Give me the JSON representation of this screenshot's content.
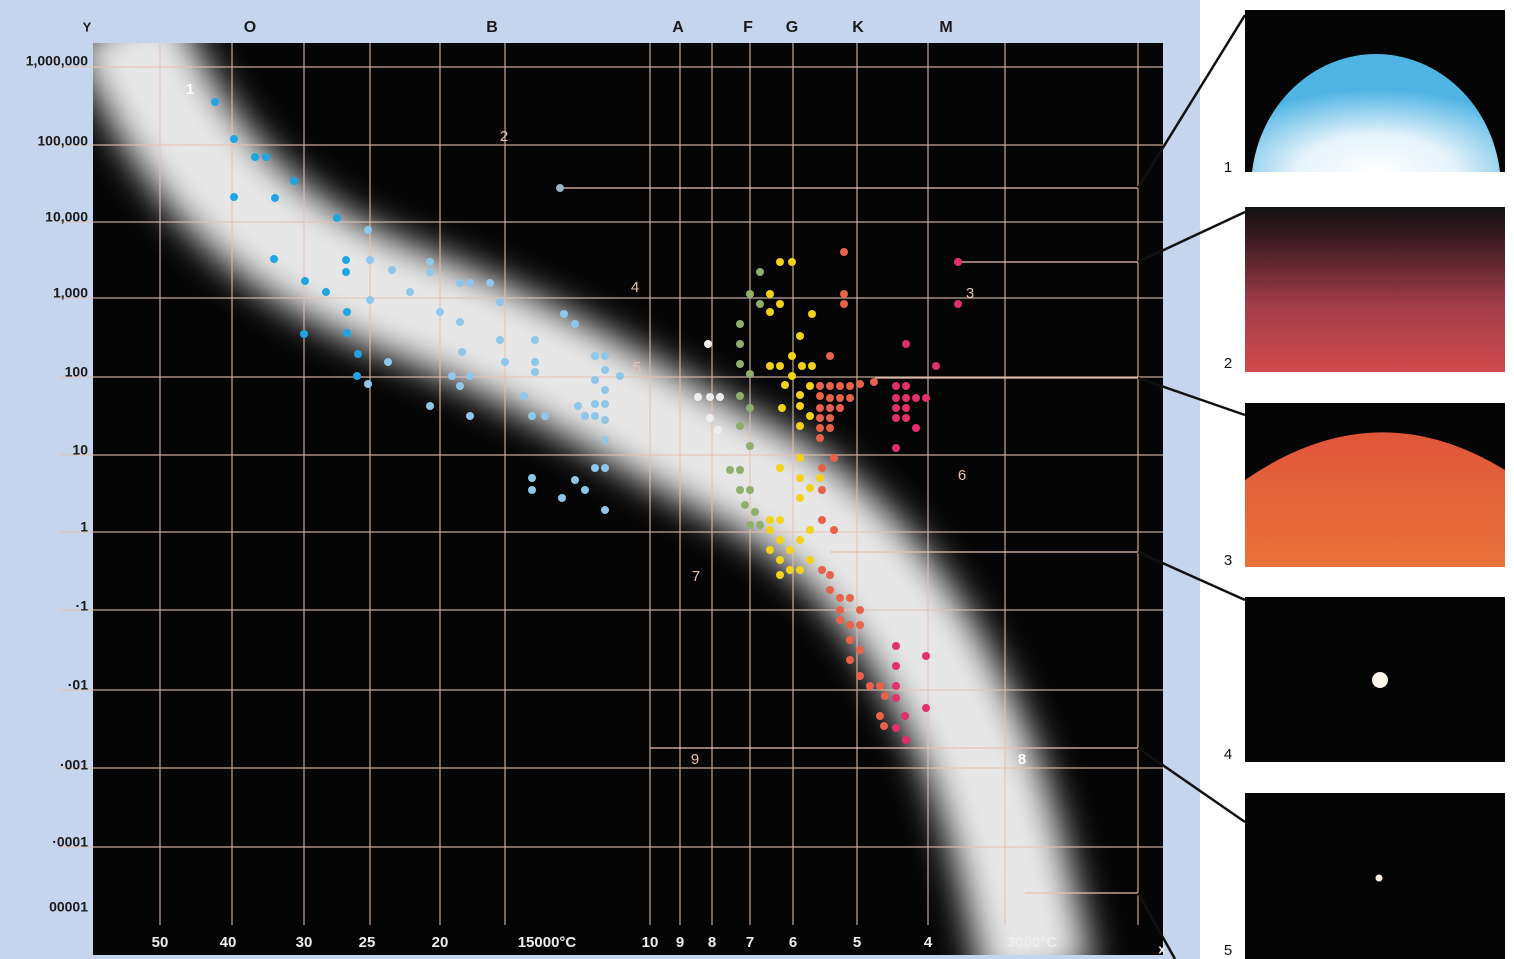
{
  "y_axis": {
    "label": "Y",
    "ticks": [
      "1,000,000",
      "100,000",
      "10,000",
      "1,000",
      "100",
      "10",
      "1",
      "·1",
      "·01",
      "·001",
      "·0001",
      "00001"
    ]
  },
  "x_axis": {
    "label": "x",
    "ticks": [
      "50",
      "40",
      "30",
      "25",
      "20",
      "15000°C",
      "10",
      "9",
      "8",
      "7",
      "6",
      "5",
      "4",
      "3000°C"
    ]
  },
  "spectral_classes": [
    "O",
    "B",
    "A",
    "F",
    "G",
    "K",
    "M"
  ],
  "annotations": [
    "1",
    "2",
    "3",
    "4",
    "5",
    "6",
    "7",
    "8",
    "9"
  ],
  "panels": [
    "1",
    "2",
    "3",
    "4",
    "5"
  ]
}
